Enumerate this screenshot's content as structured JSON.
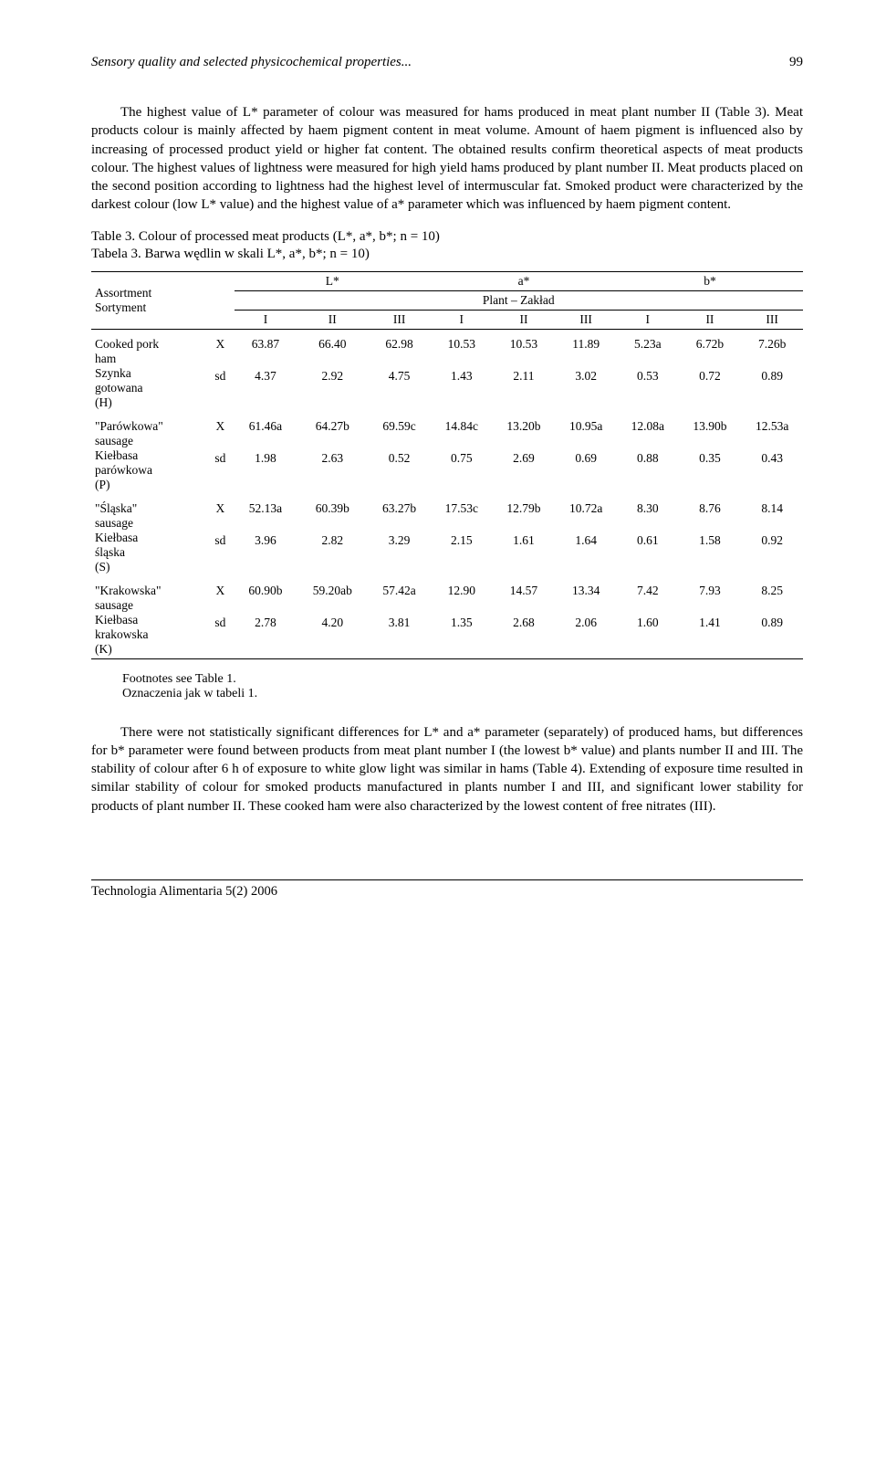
{
  "running_head": {
    "title": "Sensory quality and selected physicochemical properties...",
    "page": "99"
  },
  "para1": "The highest value of L* parameter of colour was measured for hams produced in meat plant number II (Table 3). Meat products colour is mainly affected by haem pigment content in meat volume. Amount of haem pigment is influenced also by increasing of processed product yield or higher fat content. The obtained results confirm theoretical aspects of meat products colour. The highest values of lightness were measured for high yield hams produced by plant number II. Meat products placed on the second position according to lightness had the highest level of intermuscular fat. Smoked product were characterized by the darkest colour (low L* value) and the highest value of a* parameter which was influenced by haem pigment content.",
  "table3": {
    "caption_en": "Table 3. Colour of processed meat products (L*, a*, b*; n = 10)",
    "caption_pl": "Tabela 3. Barwa wędlin w skali L*, a*, b*; n = 10)",
    "row_header": {
      "en": "Assortment",
      "pl": "Sortyment"
    },
    "col_groups": [
      "L*",
      "a*",
      "b*"
    ],
    "midheader": "Plant – Zakład",
    "subcols": [
      "I",
      "II",
      "III",
      "I",
      "II",
      "III",
      "I",
      "II",
      "III"
    ],
    "rows": [
      {
        "name_lines": [
          "Cooked pork",
          "ham",
          "Szynka",
          "gotowana",
          "(H)"
        ],
        "X": [
          "63.87",
          "66.40",
          "62.98",
          "10.53",
          "10.53",
          "11.89",
          "5.23a",
          "6.72b",
          "7.26b"
        ],
        "sd": [
          "4.37",
          "2.92",
          "4.75",
          "1.43",
          "2.11",
          "3.02",
          "0.53",
          "0.72",
          "0.89"
        ]
      },
      {
        "name_lines": [
          "\"Parówkowa\"",
          "sausage",
          "Kiełbasa",
          "parówkowa",
          "(P)"
        ],
        "X": [
          "61.46a",
          "64.27b",
          "69.59c",
          "14.84c",
          "13.20b",
          "10.95a",
          "12.08a",
          "13.90b",
          "12.53a"
        ],
        "sd": [
          "1.98",
          "2.63",
          "0.52",
          "0.75",
          "2.69",
          "0.69",
          "0.88",
          "0.35",
          "0.43"
        ]
      },
      {
        "name_lines": [
          "\"Śląska\"",
          "sausage",
          "Kiełbasa",
          "śląska",
          "(S)"
        ],
        "X": [
          "52.13a",
          "60.39b",
          "63.27b",
          "17.53c",
          "12.79b",
          "10.72a",
          "8.30",
          "8.76",
          "8.14"
        ],
        "sd": [
          "3.96",
          "2.82",
          "3.29",
          "2.15",
          "1.61",
          "1.64",
          "0.61",
          "1.58",
          "0.92"
        ]
      },
      {
        "name_lines": [
          "\"Krakowska\"",
          "sausage",
          "Kiełbasa",
          "krakowska",
          "(K)"
        ],
        "X": [
          "60.90b",
          "59.20ab",
          "57.42a",
          "12.90",
          "14.57",
          "13.34",
          "7.42",
          "7.93",
          "8.25"
        ],
        "sd": [
          "2.78",
          "4.20",
          "3.81",
          "1.35",
          "2.68",
          "2.06",
          "1.60",
          "1.41",
          "0.89"
        ]
      }
    ],
    "footnote_en": "Footnotes see Table 1.",
    "footnote_pl": "Oznaczenia jak w tabeli 1."
  },
  "para2": "There were not statistically significant differences for L* and a* parameter (separately) of produced hams, but differences for b* parameter were found between products from meat plant number I (the lowest b* value) and plants number II and III. The stability of colour after 6 h of exposure to white glow light was similar in hams (Table 4). Extending of exposure time resulted in similar stability of colour for smoked products manufactured in plants number I and III, and significant lower stability for products of plant number II. These cooked ham were also characterized by the lowest content of free nitrates (III).",
  "footer": "Technologia Alimentaria 5(2) 2006"
}
